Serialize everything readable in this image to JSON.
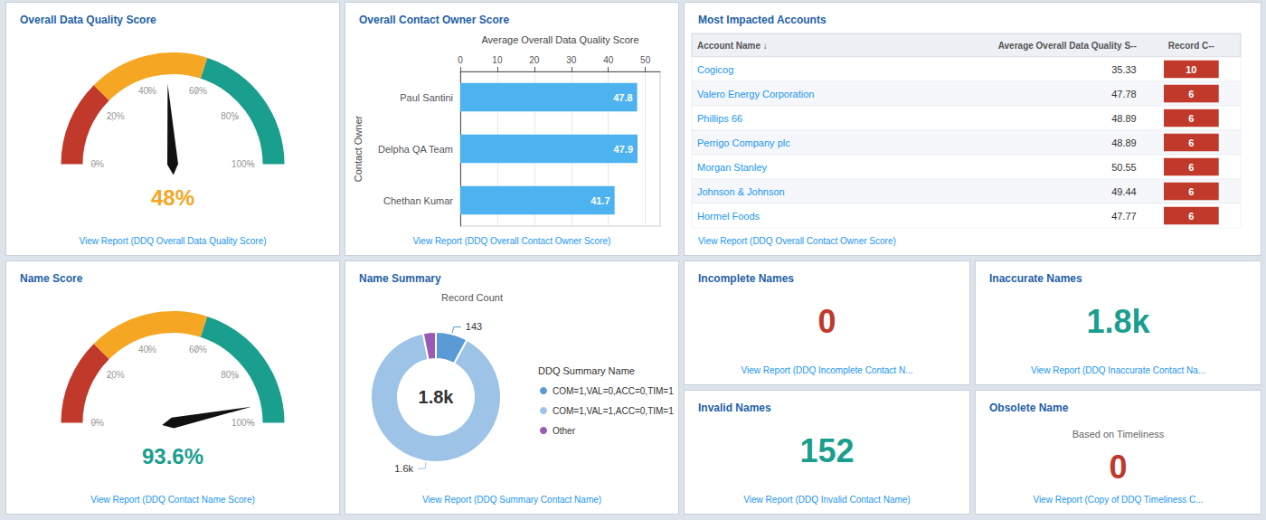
{
  "chart_data": [
    {
      "type": "gauge",
      "title": "Overall Data Quality Score",
      "values": [
        48
      ],
      "value_labels": [
        "48%"
      ],
      "color": "#f5a623",
      "ylim": [
        0,
        100
      ],
      "yticks": [
        {
          "value": 0,
          "label": "0%"
        },
        {
          "value": 20,
          "label": "20%"
        },
        {
          "value": 40,
          "label": "40%"
        },
        {
          "value": 60,
          "label": "60%"
        },
        {
          "value": 80,
          "label": "80%"
        },
        {
          "value": 100,
          "label": "100%"
        }
      ],
      "bands": [
        {
          "from": 0,
          "to": 25,
          "color": "#c0392b"
        },
        {
          "from": 25,
          "to": 60,
          "color": "#f5a623"
        },
        {
          "from": 60,
          "to": 100,
          "color": "#1a9e8e"
        }
      ],
      "annotations": [
        "View Report (DDQ Overall Data Quality Score)"
      ]
    },
    {
      "type": "bar",
      "orientation": "horizontal",
      "title": "Overall Contact Owner Score",
      "categories": [
        "Chethan Kumar",
        "Delpha QA Team",
        "Paul Santini"
      ],
      "values": [
        41.7,
        47.9,
        47.8
      ],
      "color": "#4db3f0",
      "data_labels": true,
      "xlabel": "Average Overall Data Quality Score",
      "ylabel": "Contact Owner",
      "xlim": [
        0,
        54
      ],
      "xticks": [
        0,
        10,
        20,
        30,
        40,
        50
      ],
      "grid": true,
      "annotations": [
        "View Report (DDQ Overall Contact Owner Score)"
      ]
    },
    {
      "type": "table",
      "title": "Most Impacted Accounts",
      "headers": [
        "Account Name ↓",
        "Average Overall Data Quality S--",
        "Record C--"
      ],
      "rows": [
        [
          "Cogicog",
          "35.33",
          "10"
        ],
        [
          "Valero Energy Corporation",
          "47.78",
          "6"
        ],
        [
          "Phillips 66",
          "48.89",
          "6"
        ],
        [
          "Perrigo Company plc",
          "48.89",
          "6"
        ],
        [
          "Morgan Stanley",
          "50.55",
          "6"
        ],
        [
          "Johnson & Johnson",
          "49.44",
          "6"
        ],
        [
          "Hormel Foods",
          "47.77",
          "6"
        ]
      ],
      "color": "#c0392b",
      "annotations": [
        "View Report (DDQ Overall Contact Owner Score)"
      ]
    },
    {
      "type": "gauge",
      "title": "Name Score",
      "values": [
        93.6
      ],
      "value_labels": [
        "93.6%"
      ],
      "color": "#1a9e8e",
      "ylim": [
        0,
        100
      ],
      "yticks": [
        {
          "value": 0,
          "label": "0%"
        },
        {
          "value": 20,
          "label": "20%"
        },
        {
          "value": 40,
          "label": "40%"
        },
        {
          "value": 60,
          "label": "60%"
        },
        {
          "value": 80,
          "label": "80%"
        },
        {
          "value": 100,
          "label": "100%"
        }
      ],
      "bands": [
        {
          "from": 0,
          "to": 25,
          "color": "#c0392b"
        },
        {
          "from": 25,
          "to": 60,
          "color": "#f5a623"
        },
        {
          "from": 60,
          "to": 100,
          "color": "#1a9e8e"
        }
      ],
      "annotations": [
        "View Report (DDQ Contact Name Score)"
      ]
    },
    {
      "type": "pie",
      "title": "Name Summary",
      "subtitle": "Record Count",
      "categories": [
        "COM=1,VAL=0,ACC=0,TIM=1",
        "COM=1,VAL=1,ACC=0,TIM=1",
        "Other"
      ],
      "values": [
        143,
        1600,
        57
      ],
      "value_labels": [
        "143",
        "1.6k",
        null
      ],
      "colors": [
        "#5b9bd5",
        "#9dc3e6",
        "#9b59b6"
      ],
      "data_labels": true,
      "center_text": "1.8k",
      "legend": "right",
      "legend_title": "DDQ Summary Name",
      "annotations": [
        "View Report (DDQ Summary Contact Name)"
      ]
    },
    {
      "type": "stat",
      "title": "Incomplete Names",
      "values": [
        0
      ],
      "color": "#c0392b",
      "annotations": [
        "View Report (DDQ Incomplete Contact N..."
      ]
    },
    {
      "type": "stat",
      "title": "Inaccurate Names",
      "values": [
        1800
      ],
      "value_labels": [
        "1.8k"
      ],
      "color": "#1a9e8e",
      "annotations": [
        "View Report (DDQ Inaccurate Contact Na..."
      ]
    },
    {
      "type": "stat",
      "title": "Invalid Names",
      "values": [
        152
      ],
      "color": "#1a9e8e",
      "annotations": [
        "View Report (DDQ Invalid Contact Name)"
      ]
    },
    {
      "type": "stat",
      "title": "Obsolete Name",
      "subtitle": "Based on Timeliness",
      "values": [
        0
      ],
      "color": "#c0392b",
      "annotations": [
        "View Report (Copy of DDQ Timeliness C..."
      ]
    }
  ]
}
